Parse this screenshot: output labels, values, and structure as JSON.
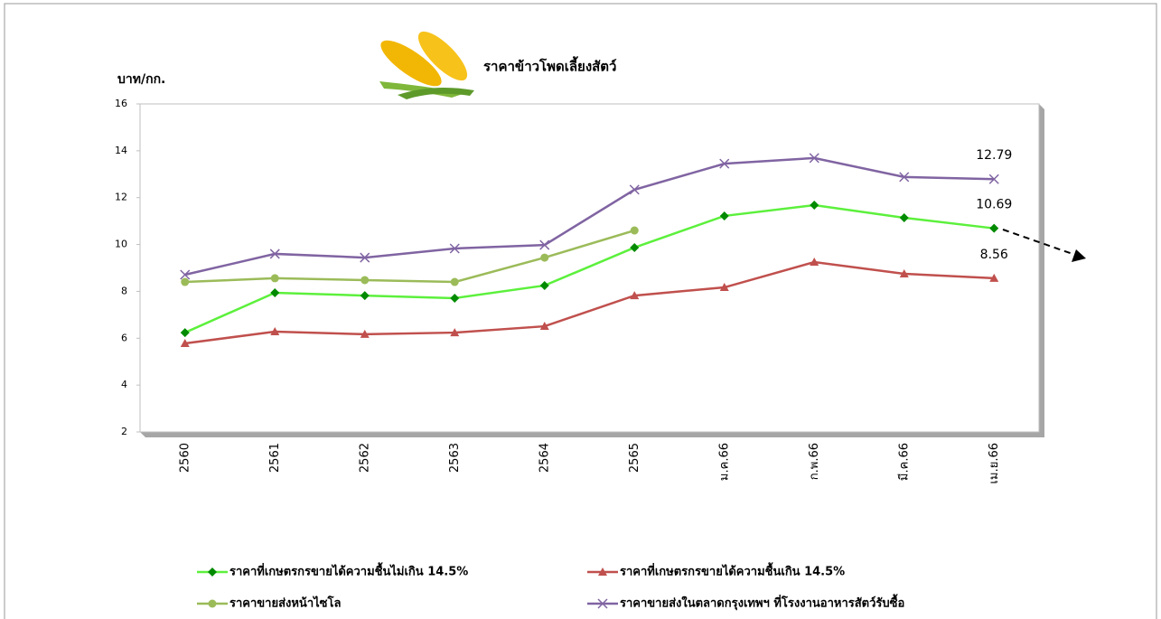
{
  "chart_data": {
    "type": "line",
    "title": "ราคาข้าวโพดเลี้ยงสัตว์",
    "y_label": "บาท/กก.",
    "categories": [
      "2560",
      "2561",
      "2562",
      "2563",
      "2564",
      "2565",
      "ม.ค.66",
      "ก.พ.66",
      "มี.ค.66",
      "เม.ย.66"
    ],
    "series": [
      {
        "name": "ราคาที่เกษตรกรขายได้ความชื้นไม่เกิน 14.5%",
        "color": "#5cf03c",
        "marker_color": "#008a00",
        "marker": "diamond",
        "show_last_value_label": true,
        "values": [
          6.24,
          7.94,
          7.82,
          7.71,
          8.25,
          9.87,
          11.22,
          11.68,
          11.14,
          10.69
        ]
      },
      {
        "name": "ราคาที่เกษตรกรขายได้ความชื้นเกิน 14.5%",
        "color": "#c0504d",
        "marker_color": "#c0504d",
        "marker": "triangle",
        "show_last_value_label": true,
        "values": [
          5.78,
          6.28,
          6.17,
          6.24,
          6.51,
          7.82,
          8.17,
          9.25,
          8.75,
          8.56
        ]
      },
      {
        "name": "ราคาขายส่งหน้าไซโล",
        "color": "#9bbb59",
        "marker_color": "#9bbb59",
        "marker": "circle",
        "show_last_value_label": false,
        "values": [
          8.4,
          8.56,
          8.48,
          8.4,
          9.44,
          10.6,
          null,
          null,
          null,
          null
        ]
      },
      {
        "name": "ราคาขายส่งในตลาดกรุงเทพฯ ที่โรงงานอาหารสัตว์รับซื้อ",
        "color": "#8064a2",
        "marker_color": "#8064a2",
        "marker": "x",
        "show_last_value_label": true,
        "values": [
          8.71,
          9.6,
          9.44,
          9.83,
          9.98,
          12.34,
          13.45,
          13.69,
          12.88,
          12.79
        ]
      }
    ],
    "ylim": [
      2,
      16
    ],
    "yticks": [
      2,
      4,
      6,
      8,
      10,
      12,
      14,
      16
    ],
    "grid": false,
    "legend": "bottom"
  }
}
